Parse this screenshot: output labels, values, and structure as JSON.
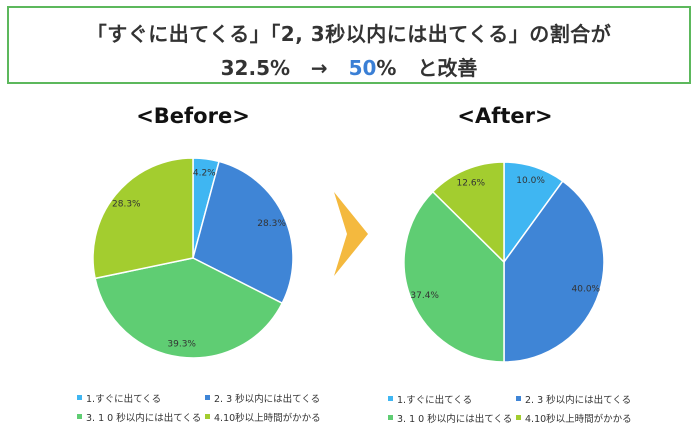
{
  "title": {
    "line1": "「すぐに出てくる」「2, 3秒以内には出てくる」の割合が",
    "before_value": "32.5%",
    "arrow": "→",
    "after_value_num": "50",
    "after_value_pct": "%",
    "suffix": "と改善"
  },
  "colors": {
    "s1": "#3fb6f2",
    "s2": "#3f85d6",
    "s3": "#5fcd73",
    "s4": "#a3cd2f",
    "arrow": "#f4b93e",
    "border": "#5cb85c",
    "accent": "#3a7fd5"
  },
  "chart_data": [
    {
      "type": "pie",
      "title": "<Before>",
      "categories": [
        "1.すぐに出てくる",
        "2. 3 秒以内には出てくる",
        "3. 1 0 秒以内には出てくる",
        "4.10秒以上時間がかかる"
      ],
      "values": [
        4.2,
        28.3,
        39.3,
        28.3
      ],
      "labels": [
        "4.2%",
        "28.3%",
        "39.3%",
        "28.3%"
      ],
      "legend": [
        "1.すぐに出てくる",
        "2. 3 秒以内には出てくる",
        "3. 1 0 秒以内には出てくる",
        "4.10秒以上時間がかかる"
      ],
      "legend_position": "bottom"
    },
    {
      "type": "pie",
      "title": "<After>",
      "categories": [
        "1.すぐに出てくる",
        "2. 3 秒以内には出てくる",
        "3. 1 0 秒以内には出てくる",
        "4.10秒以上時間がかかる"
      ],
      "values": [
        10.0,
        40.0,
        37.4,
        12.6
      ],
      "labels": [
        "10.0%",
        "40.0%",
        "37.4%",
        "12.6%"
      ],
      "legend": [
        "1.すぐに出てくる",
        "2. 3 秒以内には出てくる",
        "3. 1 0 秒以内には出てくる",
        "4.10秒以上時間がかかる"
      ],
      "legend_position": "bottom"
    }
  ]
}
